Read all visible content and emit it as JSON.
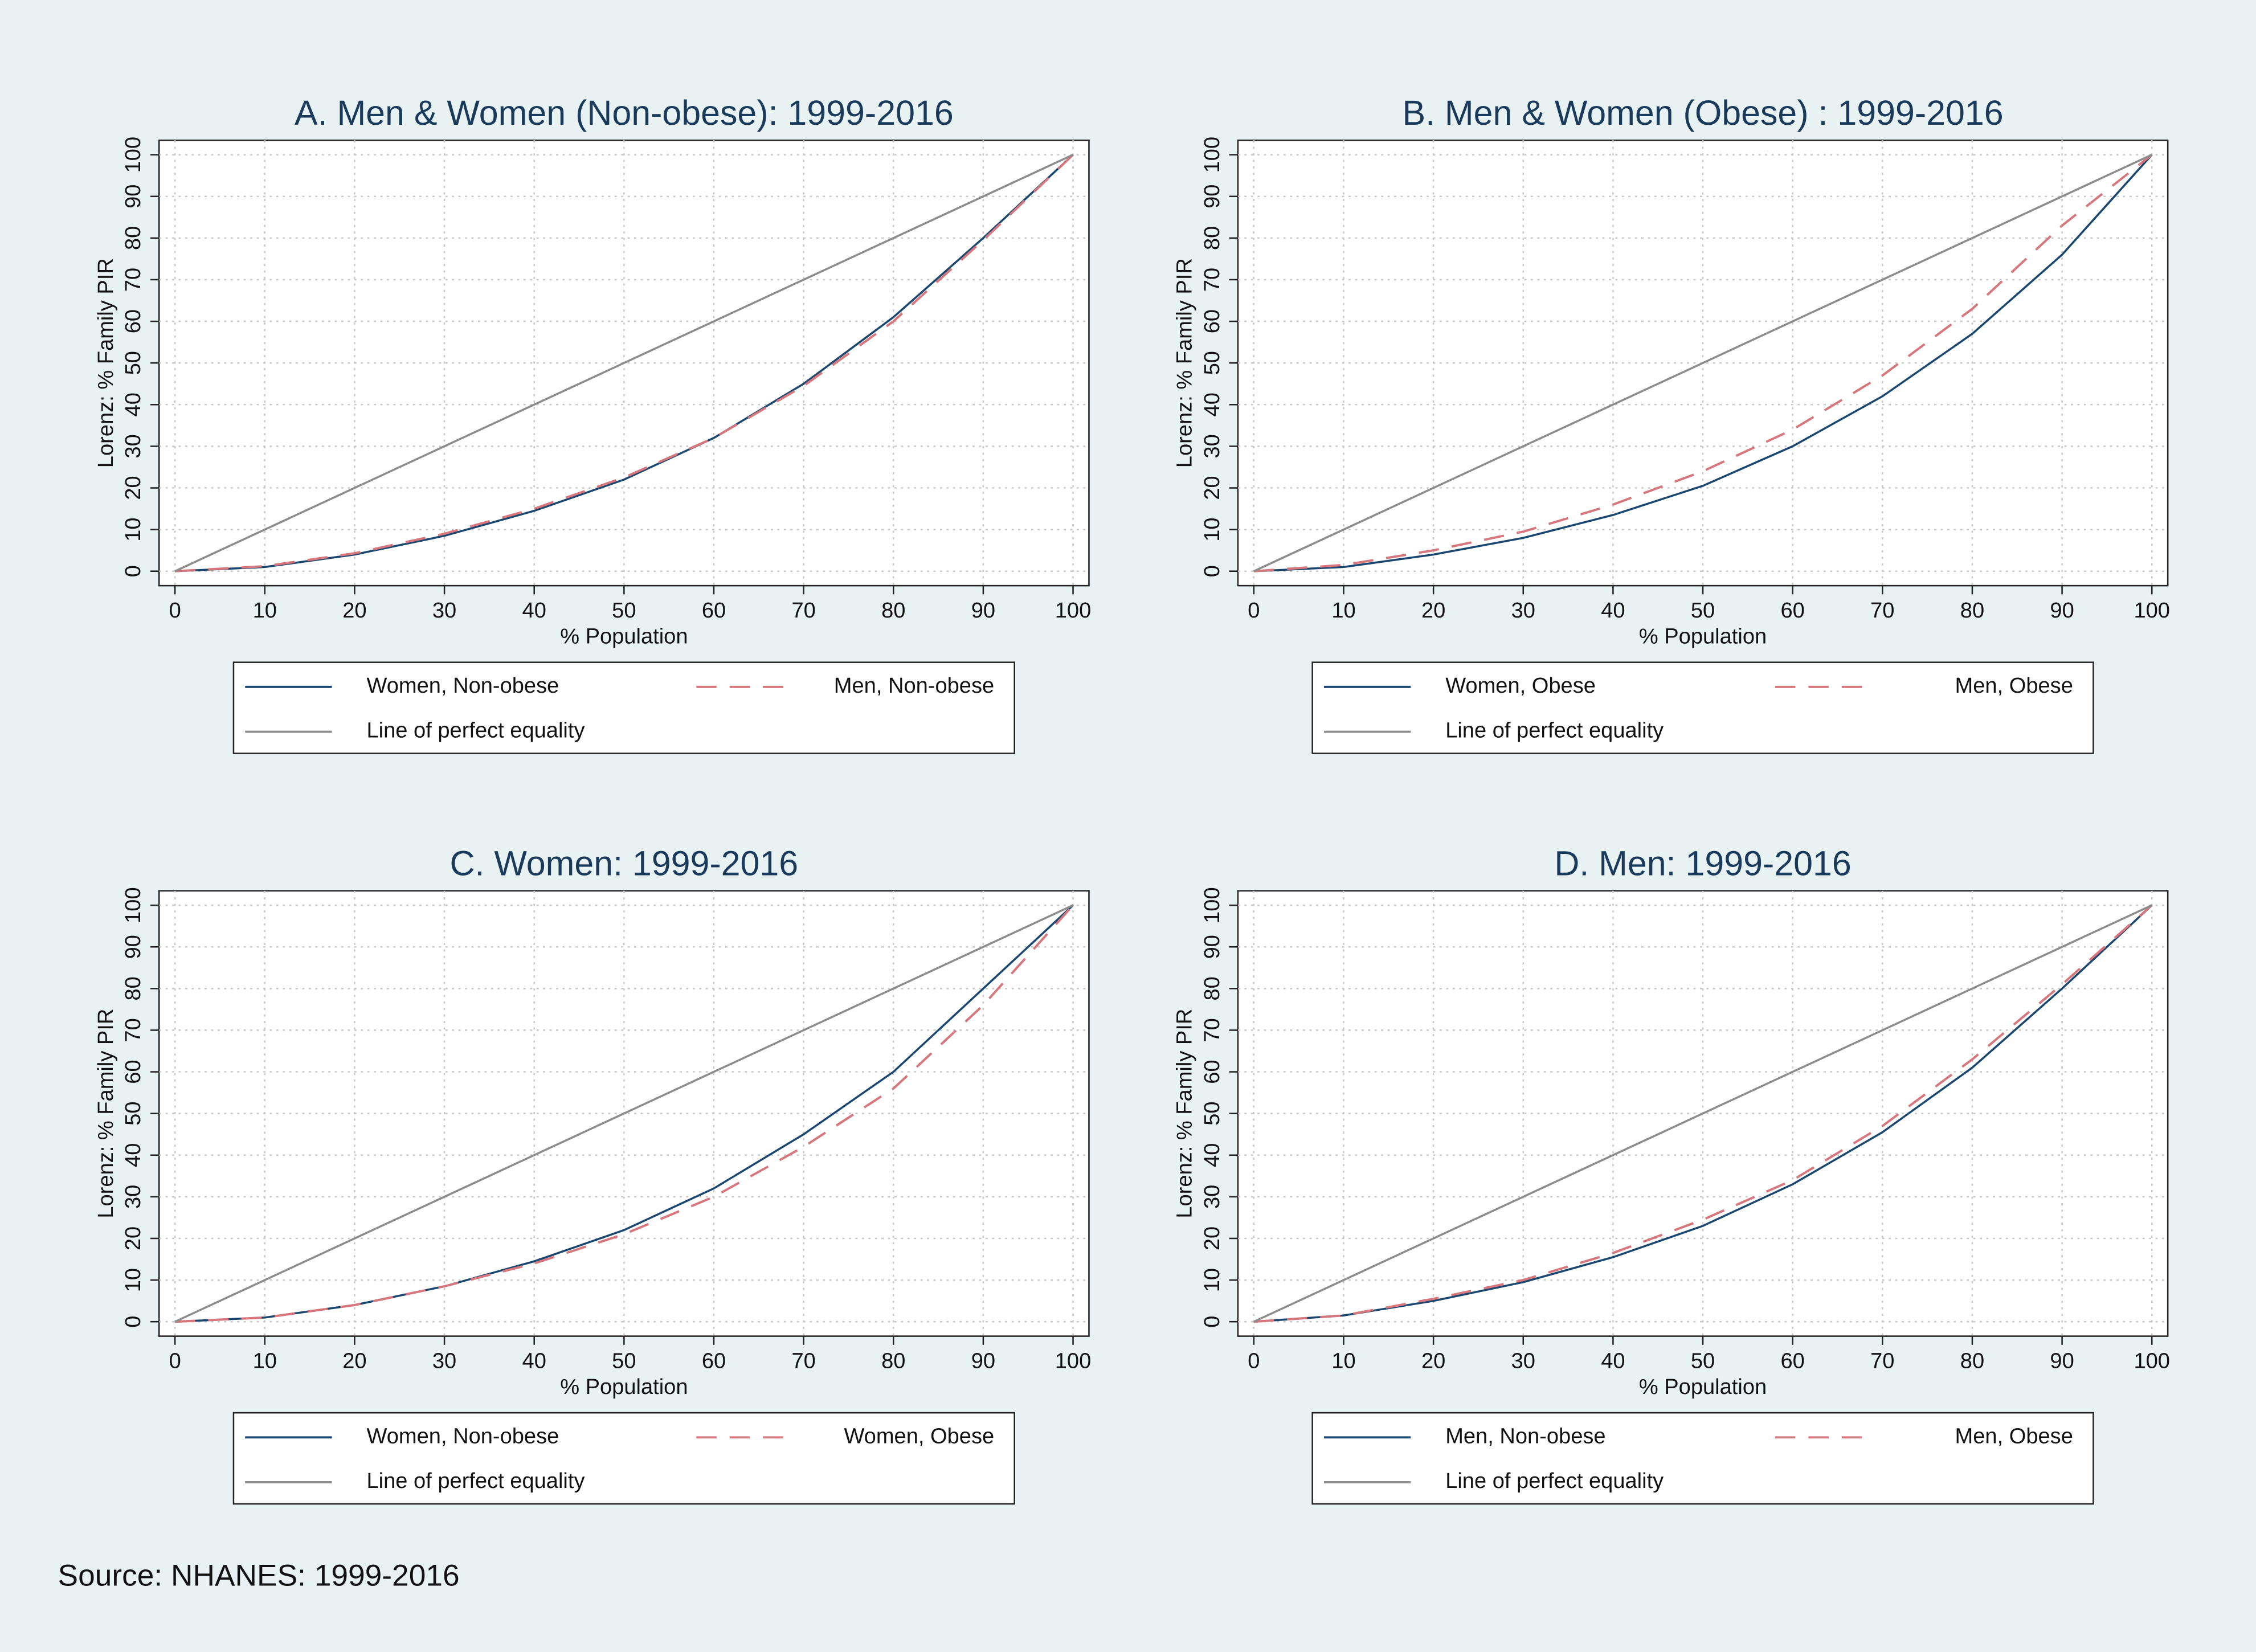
{
  "source": "Source: NHANES: 1999-2016",
  "chart_data": [
    {
      "type": "line",
      "title": "A. Men  & Women (Non-obese): 1999-2016",
      "x_label": "% Population",
      "y_label": "Lorenz: % Family PIR",
      "x": [
        0,
        10,
        20,
        30,
        40,
        50,
        60,
        70,
        80,
        90,
        100
      ],
      "xlim": [
        0,
        100
      ],
      "ylim": [
        0,
        100
      ],
      "xticks": [
        0,
        10,
        20,
        30,
        40,
        50,
        60,
        70,
        80,
        90,
        100
      ],
      "yticks": [
        0,
        10,
        20,
        30,
        40,
        50,
        60,
        70,
        80,
        90,
        100
      ],
      "grid": true,
      "series": [
        {
          "name": "Women, Non-obese",
          "color": "#1a476f",
          "dashed": false,
          "values": [
            0,
            1,
            4,
            8.5,
            14.5,
            22,
            32,
            45,
            61,
            80,
            100
          ]
        },
        {
          "name": "Men, Non-obese",
          "color": "#d7777d",
          "dashed": true,
          "values": [
            0,
            1.2,
            4.3,
            9,
            15,
            22.5,
            32,
            44.5,
            60,
            79.5,
            100
          ]
        },
        {
          "name": "Line of perfect equality",
          "color": "#8c8c8c",
          "dashed": false,
          "values": [
            0,
            10,
            20,
            30,
            40,
            50,
            60,
            70,
            80,
            90,
            100
          ]
        }
      ]
    },
    {
      "type": "line",
      "title": "B. Men  & Women (Obese) : 1999-2016",
      "x_label": "% Population",
      "y_label": "Lorenz: % Family PIR",
      "x": [
        0,
        10,
        20,
        30,
        40,
        50,
        60,
        70,
        80,
        90,
        100
      ],
      "xlim": [
        0,
        100
      ],
      "ylim": [
        0,
        100
      ],
      "xticks": [
        0,
        10,
        20,
        30,
        40,
        50,
        60,
        70,
        80,
        90,
        100
      ],
      "yticks": [
        0,
        10,
        20,
        30,
        40,
        50,
        60,
        70,
        80,
        90,
        100
      ],
      "grid": true,
      "series": [
        {
          "name": "Women, Obese",
          "color": "#1a476f",
          "dashed": false,
          "values": [
            0,
            1,
            4,
            8,
            13.5,
            20.5,
            30,
            42,
            57,
            76,
            100
          ]
        },
        {
          "name": "Men, Obese",
          "color": "#d7777d",
          "dashed": true,
          "values": [
            0,
            1.5,
            5,
            9.5,
            16,
            24,
            34,
            47,
            63,
            83,
            100
          ]
        },
        {
          "name": "Line of perfect equality",
          "color": "#8c8c8c",
          "dashed": false,
          "values": [
            0,
            10,
            20,
            30,
            40,
            50,
            60,
            70,
            80,
            90,
            100
          ]
        }
      ]
    },
    {
      "type": "line",
      "title": "C. Women: 1999-2016",
      "x_label": "% Population",
      "y_label": "Lorenz: % Family PIR",
      "x": [
        0,
        10,
        20,
        30,
        40,
        50,
        60,
        70,
        80,
        90,
        100
      ],
      "xlim": [
        0,
        100
      ],
      "ylim": [
        0,
        100
      ],
      "xticks": [
        0,
        10,
        20,
        30,
        40,
        50,
        60,
        70,
        80,
        90,
        100
      ],
      "yticks": [
        0,
        10,
        20,
        30,
        40,
        50,
        60,
        70,
        80,
        90,
        100
      ],
      "grid": true,
      "series": [
        {
          "name": "Women, Non-obese",
          "color": "#1a476f",
          "dashed": false,
          "values": [
            0,
            1,
            4,
            8.5,
            14.5,
            22,
            32,
            45,
            60,
            80,
            100
          ]
        },
        {
          "name": "Women, Obese",
          "color": "#d7777d",
          "dashed": true,
          "values": [
            0,
            1,
            4,
            8.5,
            14,
            21,
            30,
            42,
            56,
            76,
            100
          ]
        },
        {
          "name": "Line of perfect equality",
          "color": "#8c8c8c",
          "dashed": false,
          "values": [
            0,
            10,
            20,
            30,
            40,
            50,
            60,
            70,
            80,
            90,
            100
          ]
        }
      ]
    },
    {
      "type": "line",
      "title": "D. Men: 1999-2016",
      "x_label": "% Population",
      "y_label": "Lorenz: % Family PIR",
      "x": [
        0,
        10,
        20,
        30,
        40,
        50,
        60,
        70,
        80,
        90,
        100
      ],
      "xlim": [
        0,
        100
      ],
      "ylim": [
        0,
        100
      ],
      "xticks": [
        0,
        10,
        20,
        30,
        40,
        50,
        60,
        70,
        80,
        90,
        100
      ],
      "yticks": [
        0,
        10,
        20,
        30,
        40,
        50,
        60,
        70,
        80,
        90,
        100
      ],
      "grid": true,
      "series": [
        {
          "name": "Men, Non-obese",
          "color": "#1a476f",
          "dashed": false,
          "values": [
            0,
            1.5,
            5,
            9.5,
            15.5,
            23,
            33,
            45.5,
            61,
            80,
            100
          ]
        },
        {
          "name": "Men, Obese",
          "color": "#d7777d",
          "dashed": true,
          "values": [
            0,
            1.5,
            5.5,
            10,
            16.5,
            24.5,
            34,
            47,
            63,
            81,
            100
          ]
        },
        {
          "name": "Line of perfect equality",
          "color": "#8c8c8c",
          "dashed": false,
          "values": [
            0,
            10,
            20,
            30,
            40,
            50,
            60,
            70,
            80,
            90,
            100
          ]
        }
      ]
    }
  ]
}
